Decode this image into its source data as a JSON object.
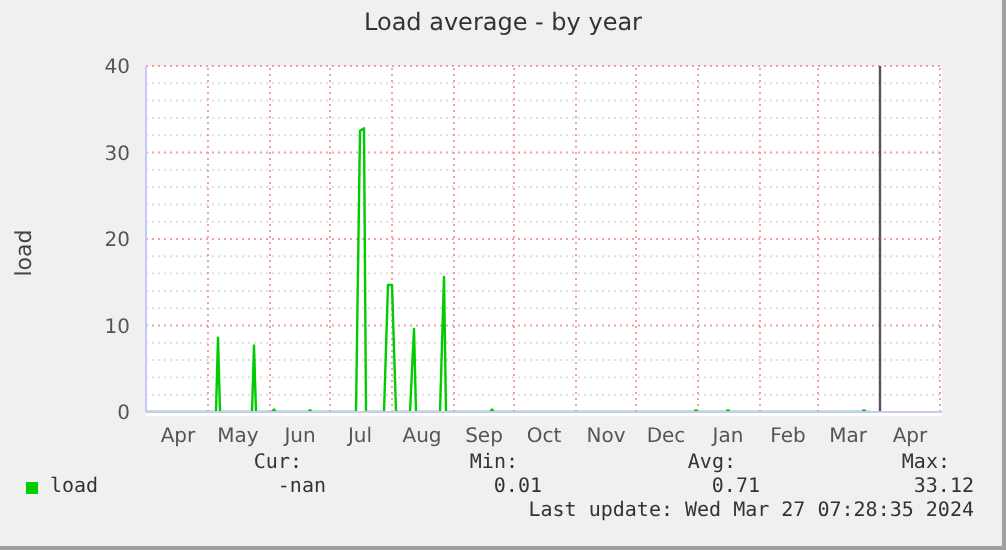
{
  "chart_data": {
    "type": "line",
    "title": "Load average - by year",
    "ylabel": "load",
    "x": [
      "2023-03-31",
      "2023-05-05",
      "2023-05-06",
      "2023-05-07",
      "2023-05-23",
      "2023-05-24",
      "2023-05-25",
      "2023-06-02",
      "2023-06-03",
      "2023-06-04",
      "2023-06-20",
      "2023-06-21",
      "2023-06-22",
      "2023-07-14",
      "2023-07-16",
      "2023-07-18",
      "2023-07-19",
      "2023-07-28",
      "2023-07-30",
      "2023-08-01",
      "2023-08-03",
      "2023-08-10",
      "2023-08-12",
      "2023-08-13",
      "2023-08-25",
      "2023-08-27",
      "2023-08-28",
      "2023-09-19",
      "2023-09-20",
      "2023-09-21",
      "2023-12-30",
      "2023-12-31",
      "2024-01-01",
      "2024-01-15",
      "2024-01-16",
      "2024-01-17",
      "2024-03-23",
      "2024-03-24",
      "2024-03-25",
      "2024-03-27"
    ],
    "series": [
      {
        "name": "load",
        "color": "#00cc00",
        "values": [
          0,
          0,
          8.6,
          0,
          0,
          7.7,
          0,
          0,
          0.3,
          0,
          0,
          0.2,
          0,
          0,
          32.5,
          32.8,
          0,
          0,
          14.7,
          14.7,
          0,
          0,
          9.6,
          0,
          0,
          15.6,
          0,
          0,
          0.3,
          0,
          0,
          0.2,
          0,
          0,
          0.2,
          0,
          0,
          0.2,
          0,
          0
        ]
      }
    ],
    "xlim": [
      "2023-03-31",
      "2024-05-02"
    ],
    "xticks": [
      {
        "value": "2023-04-16",
        "label": "Apr"
      },
      {
        "value": "2023-05-01",
        "label": null
      },
      {
        "value": "2023-05-16",
        "label": "May"
      },
      {
        "value": "2023-06-01",
        "label": null
      },
      {
        "value": "2023-06-16",
        "label": "Jun"
      },
      {
        "value": "2023-07-01",
        "label": null
      },
      {
        "value": "2023-07-16",
        "label": "Jul"
      },
      {
        "value": "2023-08-01",
        "label": null
      },
      {
        "value": "2023-08-16",
        "label": "Aug"
      },
      {
        "value": "2023-09-01",
        "label": null
      },
      {
        "value": "2023-09-16",
        "label": "Sep"
      },
      {
        "value": "2023-10-01",
        "label": null
      },
      {
        "value": "2023-10-16",
        "label": "Oct"
      },
      {
        "value": "2023-11-01",
        "label": null
      },
      {
        "value": "2023-11-16",
        "label": "Nov"
      },
      {
        "value": "2023-12-01",
        "label": null
      },
      {
        "value": "2023-12-16",
        "label": "Dec"
      },
      {
        "value": "2024-01-01",
        "label": null
      },
      {
        "value": "2024-01-16",
        "label": "Jan"
      },
      {
        "value": "2024-02-01",
        "label": null
      },
      {
        "value": "2024-02-15",
        "label": "Feb"
      },
      {
        "value": "2024-03-01",
        "label": null
      },
      {
        "value": "2024-03-16",
        "label": "Mar"
      },
      {
        "value": "2024-04-01",
        "label": null
      },
      {
        "value": "2024-04-16",
        "label": "Apr"
      },
      {
        "value": "2024-05-01",
        "label": null
      }
    ],
    "ylim": [
      0,
      40
    ],
    "yticks": [
      0,
      {
        "value": 2,
        "label": null
      },
      {
        "value": 4,
        "label": null
      },
      {
        "value": 6,
        "label": null
      },
      {
        "value": 8,
        "label": null
      },
      10,
      {
        "value": 12,
        "label": null
      },
      {
        "value": 14,
        "label": null
      },
      {
        "value": 16,
        "label": null
      },
      {
        "value": 18,
        "label": null
      },
      20,
      {
        "value": 22,
        "label": null
      },
      {
        "value": 24,
        "label": null
      },
      {
        "value": 26,
        "label": null
      },
      {
        "value": 28,
        "label": null
      },
      30,
      {
        "value": 32,
        "label": null
      },
      {
        "value": 34,
        "label": null
      },
      {
        "value": 36,
        "label": null
      },
      {
        "value": 38,
        "label": null
      },
      40
    ],
    "grid": true,
    "legend": "bottom left",
    "ref_lines": [
      {
        "axis": "x",
        "value": "2024-04-01",
        "color": "#555555"
      }
    ],
    "annotations": [
      "Cur:",
      "-nan",
      "Min:",
      "0.01",
      "Avg:",
      "0.71",
      "Max:",
      "33.12",
      "Last update: Wed Mar 27 07:28:35 2024"
    ]
  }
}
